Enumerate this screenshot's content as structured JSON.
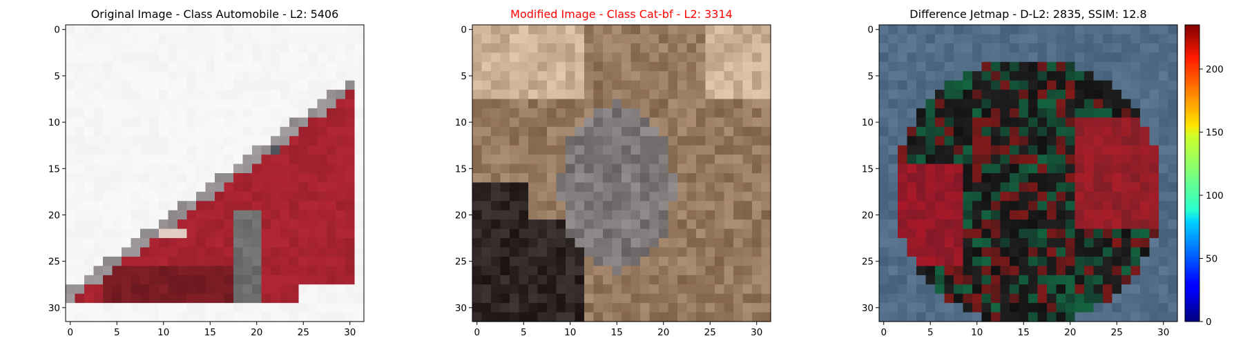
{
  "chart_data": [
    {
      "type": "image",
      "title": "Original Image - Class Automobile - L2: 5406",
      "title_color": "#000000",
      "grid": false,
      "xlim": [
        -0.5,
        31.5
      ],
      "ylim": [
        31.5,
        -0.5
      ],
      "xticks": [
        0,
        5,
        10,
        15,
        20,
        25,
        30
      ],
      "yticks": [
        0,
        5,
        10,
        15,
        20,
        25,
        30
      ],
      "image_description": "32x32 pixelated photo of a red hatchback car on a white background, dark windows at top",
      "pixels": "car"
    },
    {
      "type": "image",
      "title": "Modified Image - Class Cat-bf - L2: 3314",
      "title_color": "#ff0000",
      "grid": false,
      "xlim": [
        -0.5,
        31.5
      ],
      "ylim": [
        31.5,
        -0.5
      ],
      "xticks": [
        0,
        5,
        10,
        15,
        20,
        25,
        30
      ],
      "yticks": [
        0,
        5,
        10,
        15,
        20,
        25,
        30
      ],
      "image_description": "32x32 pixelated photo in beige, brown, grey and black tones with a grey cat-like shape in the center",
      "pixels": "cat"
    },
    {
      "type": "heatmap",
      "title": "Difference Jetmap - D-L2: 2835, SSIM: 12.8",
      "title_color": "#000000",
      "grid": false,
      "xlim": [
        -0.5,
        31.5
      ],
      "ylim": [
        31.5,
        -0.5
      ],
      "xticks": [
        0,
        5,
        10,
        15,
        20,
        25,
        30
      ],
      "yticks": [
        0,
        5,
        10,
        15,
        20,
        25,
        30
      ],
      "colorbar": {
        "colormap": "jet",
        "range": [
          0,
          235
        ],
        "ticks": [
          0,
          50,
          100,
          150,
          200
        ]
      },
      "image_description": "32x32 difference image: blue-grey border region, dark red/green/black round blob in the center",
      "pixels": "diff"
    }
  ],
  "colors": {
    "car_red": "#a8232f",
    "car_window": "#4a5058",
    "background_white": "#f4f4f4",
    "cat_beige": "#c9ad92",
    "cat_grey": "#847d7c",
    "diff_blue": "#4f6b86"
  }
}
